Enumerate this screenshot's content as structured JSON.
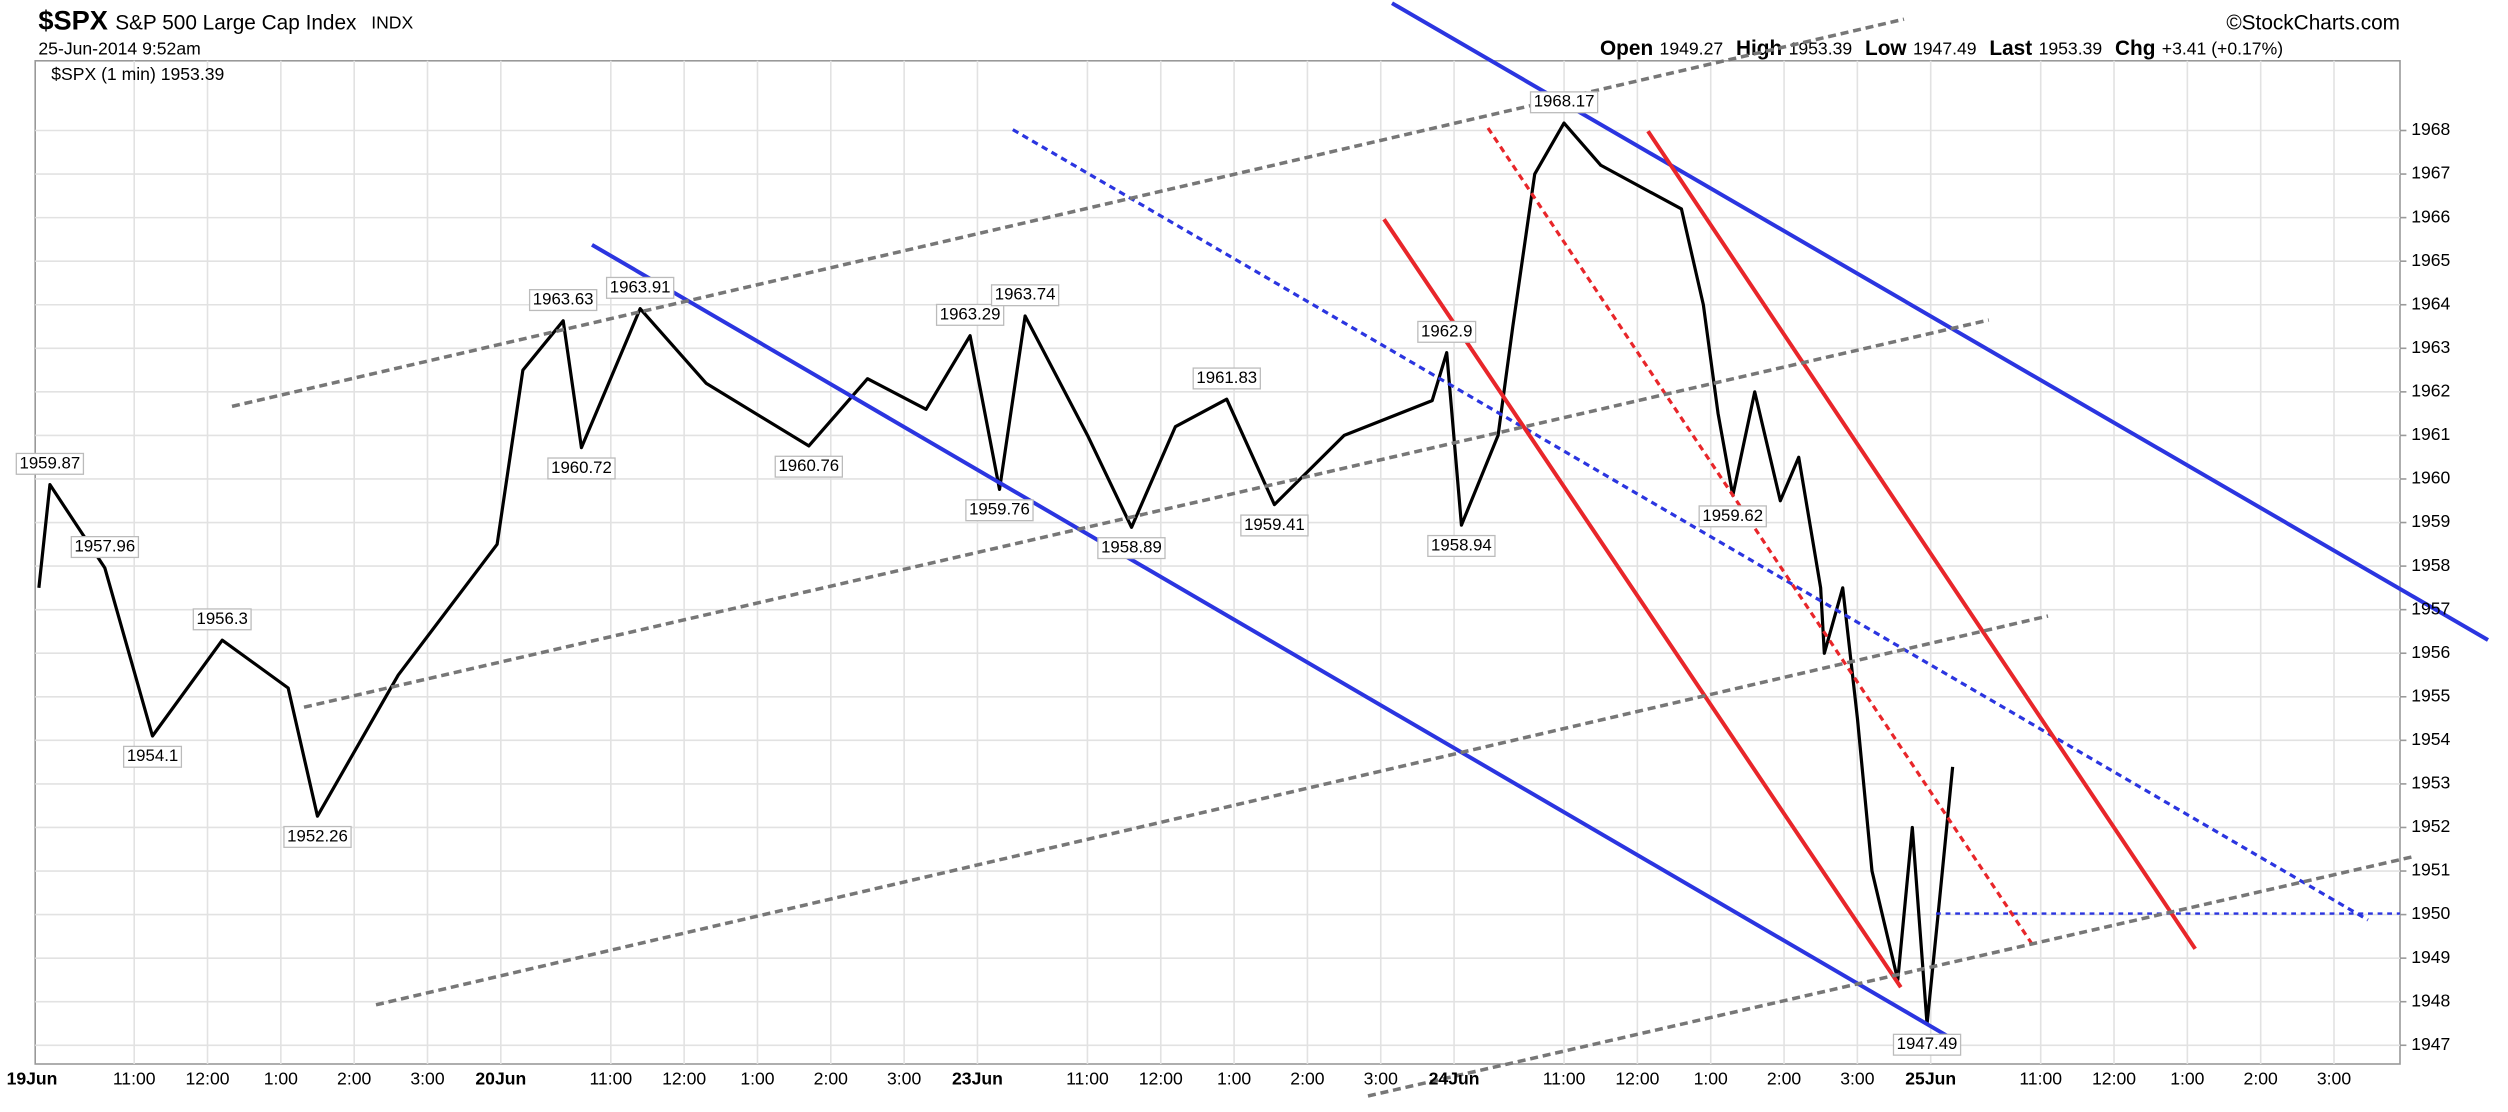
{
  "chart_data": {
    "type": "line",
    "symbol": "$SPX",
    "title": "S&P 500 Large Cap Index",
    "exchange": "INDX",
    "date": "25-Jun-2014 9:52am",
    "legend": "$SPX (1 min) 1953.39",
    "quote": [
      {
        "label": "Open",
        "value": "1949.27"
      },
      {
        "label": "High",
        "value": "1953.39"
      },
      {
        "label": "Low",
        "value": "1947.49"
      },
      {
        "label": "Last",
        "value": "1953.39"
      },
      {
        "label": "Chg",
        "value": "+3.41 (+0.17%)"
      }
    ],
    "credit": "©StockCharts.com",
    "color": "#000000",
    "x": [
      0.2,
      0.35,
      1.1,
      1.75,
      2.7,
      3.6,
      4.0,
      5.1,
      6.45,
      6.8,
      7.35,
      7.6,
      8.4,
      9.3,
      10.7,
      11.5,
      12.3,
      12.9,
      13.3,
      13.65,
      14.5,
      15.1,
      15.7,
      16.4,
      17.05,
      18.0,
      19.2,
      19.4,
      19.6,
      20.1,
      20.3,
      20.6,
      21.0,
      21.5,
      22.6,
      22.9,
      23.1,
      23.3,
      23.6,
      23.95,
      24.2,
      24.5,
      24.55,
      24.8,
      25.0,
      25.2,
      25.55,
      25.75,
      25.95,
      26.1,
      26.3
    ],
    "values": [
      1957.5,
      1959.87,
      1957.96,
      1954.1,
      1956.3,
      1955.2,
      1952.26,
      1955.5,
      1958.5,
      1962.5,
      1963.63,
      1960.72,
      1963.91,
      1962.2,
      1960.76,
      1962.3,
      1961.6,
      1963.29,
      1959.76,
      1963.74,
      1961,
      1958.89,
      1961.2,
      1961.83,
      1959.41,
      1961,
      1961.8,
      1962.9,
      1958.94,
      1961,
      1963.5,
      1967,
      1968.17,
      1967.2,
      1966.2,
      1964,
      1961.5,
      1959.62,
      1962,
      1959.5,
      1960.5,
      1957.5,
      1956,
      1957.5,
      1954.5,
      1951,
      1948.5,
      1952,
      1947.49,
      1950,
      1953.39
    ],
    "peak_labels": [
      {
        "x": 0.35,
        "value": 1959.87
      },
      {
        "x": 1.1,
        "value": 1957.96
      },
      {
        "x": 2.7,
        "value": 1956.3
      },
      {
        "x": 7.35,
        "value": 1963.63
      },
      {
        "x": 8.4,
        "value": 1963.91
      },
      {
        "x": 12.9,
        "value": 1963.29
      },
      {
        "x": 13.65,
        "value": 1963.74
      },
      {
        "x": 16.4,
        "value": 1961.83
      },
      {
        "x": 19.4,
        "value": 1962.9
      },
      {
        "x": 21.0,
        "value": 1968.17
      }
    ],
    "trough_labels": [
      {
        "x": 1.75,
        "value": 1954.1
      },
      {
        "x": 4.0,
        "value": 1952.26
      },
      {
        "x": 7.6,
        "value": 1960.72
      },
      {
        "x": 10.7,
        "value": 1960.76
      },
      {
        "x": 13.3,
        "value": 1959.76
      },
      {
        "x": 15.1,
        "value": 1958.89
      },
      {
        "x": 17.05,
        "value": 1959.41
      },
      {
        "x": 19.6,
        "value": 1958.94
      },
      {
        "x": 23.3,
        "value": 1959.62
      },
      {
        "x": 25.95,
        "value": 1947.49
      }
    ],
    "xlim": [
      0.15,
      32.4
    ],
    "xticks": [
      {
        "value": 0,
        "label": "19Jun"
      },
      {
        "value": 1.5,
        "label": "11:00"
      },
      {
        "value": 2.5,
        "label": "12:00"
      },
      {
        "value": 3.5,
        "label": "1:00"
      },
      {
        "value": 4.5,
        "label": "2:00"
      },
      {
        "value": 5.5,
        "label": "3:00"
      },
      {
        "value": 6.5,
        "label": "20Jun"
      },
      {
        "value": 8,
        "label": "11:00"
      },
      {
        "value": 9,
        "label": "12:00"
      },
      {
        "value": 10,
        "label": "1:00"
      },
      {
        "value": 11,
        "label": "2:00"
      },
      {
        "value": 12,
        "label": "3:00"
      },
      {
        "value": 13,
        "label": "23Jun"
      },
      {
        "value": 14.5,
        "label": "11:00"
      },
      {
        "value": 15.5,
        "label": "12:00"
      },
      {
        "value": 16.5,
        "label": "1:00"
      },
      {
        "value": 17.5,
        "label": "2:00"
      },
      {
        "value": 18.5,
        "label": "3:00"
      },
      {
        "value": 19.5,
        "label": "24Jun"
      },
      {
        "value": 21,
        "label": "11:00"
      },
      {
        "value": 22,
        "label": "12:00"
      },
      {
        "value": 23,
        "label": "1:00"
      },
      {
        "value": 24,
        "label": "2:00"
      },
      {
        "value": 25,
        "label": "3:00"
      },
      {
        "value": 26,
        "label": "25Jun"
      },
      {
        "value": 27.5,
        "label": "11:00"
      },
      {
        "value": 28.5,
        "label": "12:00"
      },
      {
        "value": 29.5,
        "label": "1:00"
      },
      {
        "value": 30.5,
        "label": "2:00"
      },
      {
        "value": 31.5,
        "label": "3:00"
      }
    ],
    "ylim": [
      1946.57,
      1969.6
    ],
    "yticks": [
      1947,
      1948,
      1949,
      1950,
      1951,
      1952,
      1953,
      1954,
      1955,
      1956,
      1957,
      1958,
      1959,
      1960,
      1961,
      1962,
      1963,
      1964,
      1965,
      1966,
      1967,
      1968
    ],
    "grid": true
  }
}
